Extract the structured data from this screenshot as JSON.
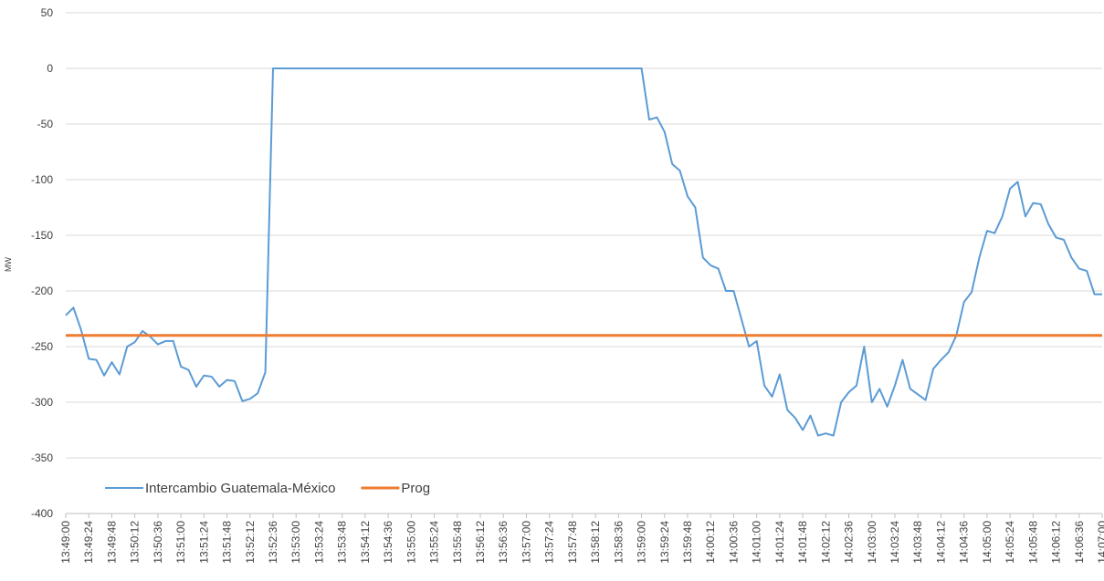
{
  "chart_data": {
    "type": "line",
    "ylabel": "MW",
    "categories": [
      "13:49:00",
      null,
      null,
      "13:49:24",
      null,
      null,
      "13:49:48",
      null,
      null,
      "13:50:12",
      null,
      null,
      "13:50:36",
      null,
      null,
      "13:51:00",
      null,
      null,
      "13:51:24",
      null,
      null,
      "13:51:48",
      null,
      null,
      "13:52:12",
      null,
      null,
      "13:52:36",
      null,
      null,
      "13:53:00",
      null,
      null,
      "13:53:24",
      null,
      null,
      "13:53:48",
      null,
      null,
      "13:54:12",
      null,
      null,
      "13:54:36",
      null,
      null,
      "13:55:00",
      null,
      null,
      "13:55:24",
      null,
      null,
      "13:55:48",
      null,
      null,
      "13:56:12",
      null,
      null,
      "13:56:36",
      null,
      null,
      "13:57:00",
      null,
      null,
      "13:57:24",
      null,
      null,
      "13:57:48",
      null,
      null,
      "13:58:12",
      null,
      null,
      "13:58:36",
      null,
      null,
      "13:59:00",
      null,
      null,
      "13:59:24",
      null,
      null,
      "13:59:48",
      null,
      null,
      "14:00:12",
      null,
      null,
      "14:00:36",
      null,
      null,
      "14:01:00",
      null,
      null,
      "14:01:24",
      null,
      null,
      "14:01:48",
      null,
      null,
      "14:02:12",
      null,
      null,
      "14:02:36",
      null,
      null,
      "14:03:00",
      null,
      null,
      "14:03:24",
      null,
      null,
      "14:03:48",
      null,
      null,
      "14:04:12",
      null,
      null,
      "14:04:36",
      null,
      null,
      "14:05:00",
      null,
      null,
      "14:05:24",
      null,
      null,
      "14:05:48",
      null,
      null,
      "14:06:12",
      null,
      null,
      "14:06:36",
      null,
      null,
      "14:07:00"
    ],
    "series": [
      {
        "name": "Intercambio Guatemala-México",
        "color": "#5b9bd5",
        "values": [
          -222,
          -215,
          -235,
          -261,
          -262,
          -276,
          -264,
          -275,
          -250,
          -246,
          -236,
          -241,
          -248,
          -245,
          -245,
          -268,
          -271,
          -286,
          -276,
          -277,
          -286,
          -280,
          -281,
          -299,
          -297,
          -292,
          -273,
          0,
          0,
          0,
          0,
          0,
          0,
          0,
          0,
          0,
          0,
          0,
          0,
          0,
          0,
          0,
          0,
          0,
          0,
          0,
          0,
          0,
          0,
          0,
          0,
          0,
          0,
          0,
          0,
          0,
          0,
          0,
          0,
          0,
          0,
          0,
          0,
          0,
          0,
          0,
          0,
          0,
          0,
          0,
          0,
          0,
          0,
          0,
          0,
          0,
          -46,
          -44,
          -57,
          -86,
          -92,
          -115,
          -125,
          -170,
          -177,
          -180,
          -200,
          -200,
          -225,
          -250,
          -245,
          -285,
          -295,
          -275,
          -307,
          -314,
          -325,
          -312,
          -330,
          -328,
          -330,
          -300,
          -291,
          -285,
          -250,
          -300,
          -288,
          -304,
          -285,
          -262,
          -288,
          -293,
          -298,
          -270,
          -262,
          -255,
          -240,
          -210,
          -201,
          -170,
          -146,
          -148,
          -133,
          -108,
          -102,
          -133,
          -121,
          -122,
          -140,
          -152,
          -154,
          -170,
          -180,
          -182,
          -203,
          -203
        ]
      },
      {
        "name": "Prog",
        "color": "#ed7d31",
        "values": [
          -240,
          -240,
          -240,
          -240,
          -240,
          -240,
          -240,
          -240,
          -240,
          -240,
          -240,
          -240,
          -240,
          -240,
          -240,
          -240,
          -240,
          -240,
          -240,
          -240,
          -240,
          -240,
          -240,
          -240,
          -240,
          -240,
          -240,
          -240,
          -240,
          -240,
          -240,
          -240,
          -240,
          -240,
          -240,
          -240,
          -240,
          -240,
          -240,
          -240,
          -240,
          -240,
          -240,
          -240,
          -240,
          -240,
          -240,
          -240,
          -240,
          -240,
          -240,
          -240,
          -240,
          -240,
          -240,
          -240,
          -240,
          -240,
          -240,
          -240,
          -240,
          -240,
          -240,
          -240,
          -240,
          -240,
          -240,
          -240,
          -240,
          -240,
          -240,
          -240,
          -240,
          -240,
          -240,
          -240,
          -240,
          -240,
          -240,
          -240,
          -240,
          -240,
          -240,
          -240,
          -240,
          -240,
          -240,
          -240,
          -240,
          -240,
          -240,
          -240,
          -240,
          -240,
          -240,
          -240,
          -240,
          -240,
          -240,
          -240,
          -240,
          -240,
          -240,
          -240,
          -240,
          -240,
          -240,
          -240,
          -240,
          -240,
          -240,
          -240,
          -240,
          -240,
          -240,
          -240,
          -240,
          -240,
          -240,
          -240,
          -240,
          -240,
          -240,
          -240,
          -240,
          -240,
          -240,
          -240,
          -240,
          -240,
          -240,
          -240,
          -240,
          -240,
          -240,
          -240
        ]
      }
    ],
    "ylim": [
      -400,
      50
    ],
    "yticks": [
      -400,
      -350,
      -300,
      -250,
      -200,
      -150,
      -100,
      -50,
      0,
      50
    ],
    "grid": true,
    "legend": "lower left"
  }
}
